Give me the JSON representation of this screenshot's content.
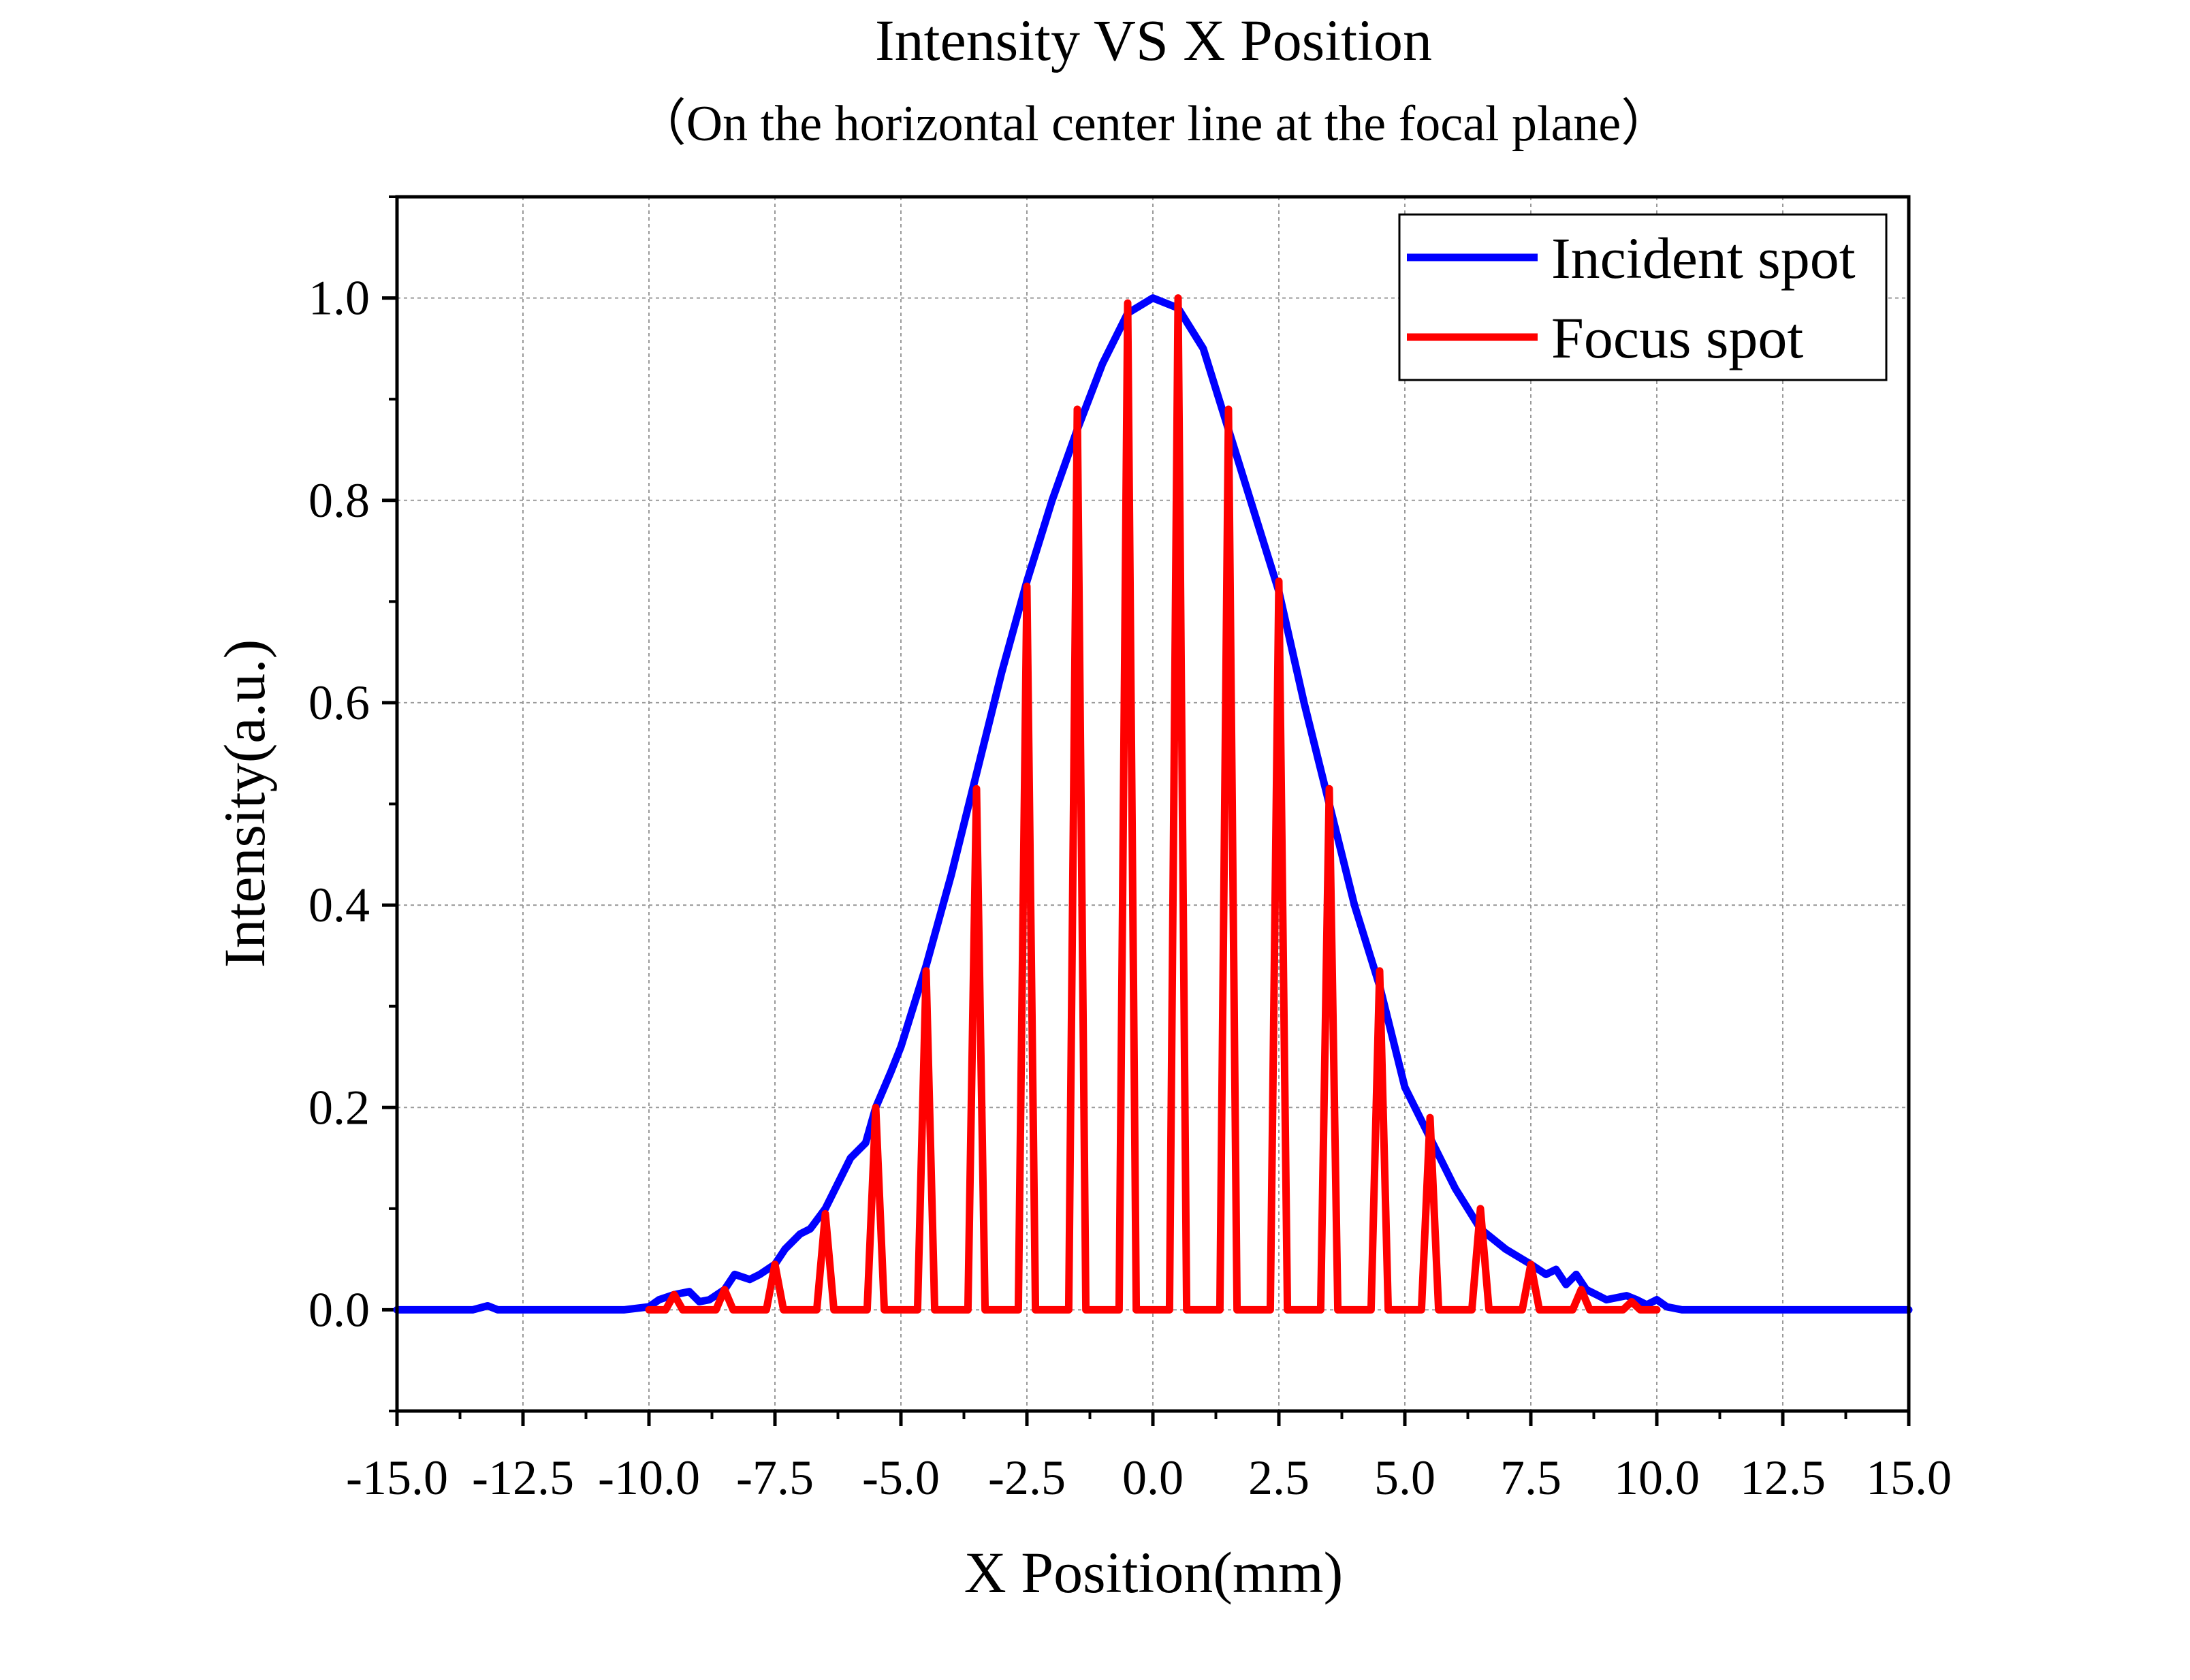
{
  "chart_data": {
    "type": "line",
    "title": "Intensity VS X Position",
    "subtitle": "（On the horizontal center line at the focal plane）",
    "xlabel": "X Position(mm)",
    "ylabel": "Intensity(a.u.)",
    "xlim": [
      -15.0,
      15.0
    ],
    "ylim": [
      -0.1,
      1.1
    ],
    "x_ticks": [
      -15.0,
      -12.5,
      -10.0,
      -7.5,
      -5.0,
      -2.5,
      0.0,
      2.5,
      5.0,
      7.5,
      10.0,
      12.5,
      15.0
    ],
    "x_tick_labels": [
      "-15.0",
      "-12.5",
      "-10.0",
      "-7.5",
      "-5.0",
      "-2.5",
      "0.0",
      "2.5",
      "5.0",
      "7.5",
      "10.0",
      "12.5",
      "15.0"
    ],
    "y_ticks": [
      0.0,
      0.2,
      0.4,
      0.6,
      0.8,
      1.0
    ],
    "y_tick_labels": [
      "0.0",
      "0.2",
      "0.4",
      "0.6",
      "0.8",
      "1.0"
    ],
    "grid": true,
    "legend_position": "top-right",
    "series": [
      {
        "name": "Incident spot",
        "color": "#0000ff",
        "x": [
          -15.0,
          -13.5,
          -13.2,
          -13.0,
          -10.5,
          -10.0,
          -9.8,
          -9.5,
          -9.2,
          -9.0,
          -8.8,
          -8.5,
          -8.3,
          -8.0,
          -7.8,
          -7.5,
          -7.3,
          -7.0,
          -6.8,
          -6.5,
          -6.3,
          -6.0,
          -5.7,
          -5.5,
          -5.2,
          -5.0,
          -4.5,
          -4.0,
          -3.5,
          -3.0,
          -2.5,
          -2.0,
          -1.5,
          -1.0,
          -0.5,
          0.0,
          0.5,
          1.0,
          1.5,
          2.0,
          2.5,
          3.0,
          3.5,
          4.0,
          4.5,
          5.0,
          5.5,
          6.0,
          6.5,
          7.0,
          7.5,
          7.8,
          8.0,
          8.2,
          8.4,
          8.6,
          8.8,
          9.0,
          9.2,
          9.4,
          9.6,
          9.8,
          10.0,
          10.2,
          10.5,
          11.0,
          15.0
        ],
        "y": [
          0.0,
          0.0,
          0.004,
          0.0,
          0.0,
          0.003,
          0.01,
          0.015,
          0.018,
          0.008,
          0.01,
          0.02,
          0.035,
          0.03,
          0.035,
          0.045,
          0.06,
          0.075,
          0.08,
          0.1,
          0.12,
          0.15,
          0.165,
          0.2,
          0.235,
          0.26,
          0.34,
          0.43,
          0.53,
          0.63,
          0.72,
          0.8,
          0.87,
          0.935,
          0.985,
          1.0,
          0.99,
          0.95,
          0.87,
          0.79,
          0.71,
          0.6,
          0.5,
          0.4,
          0.32,
          0.22,
          0.17,
          0.12,
          0.08,
          0.06,
          0.045,
          0.035,
          0.04,
          0.025,
          0.035,
          0.02,
          0.015,
          0.01,
          0.012,
          0.014,
          0.01,
          0.005,
          0.01,
          0.003,
          0.0,
          0.0,
          0.0
        ]
      },
      {
        "name": "Focus spot",
        "color": "#ff0000",
        "peaks_x": [
          -9.5,
          -8.5,
          -7.5,
          -6.5,
          -5.5,
          -4.5,
          -3.5,
          -2.5,
          -1.5,
          -0.5,
          0.5,
          1.5,
          2.5,
          3.5,
          4.5,
          5.5,
          6.5,
          7.5,
          8.5,
          9.5
        ],
        "peaks_y": [
          0.015,
          0.02,
          0.045,
          0.095,
          0.2,
          0.335,
          0.515,
          0.715,
          0.89,
          0.995,
          1.0,
          0.89,
          0.72,
          0.515,
          0.335,
          0.19,
          0.1,
          0.045,
          0.02,
          0.008
        ],
        "baseline_x_range": [
          -10.0,
          10.0
        ],
        "peak_half_width": 0.17
      }
    ]
  }
}
